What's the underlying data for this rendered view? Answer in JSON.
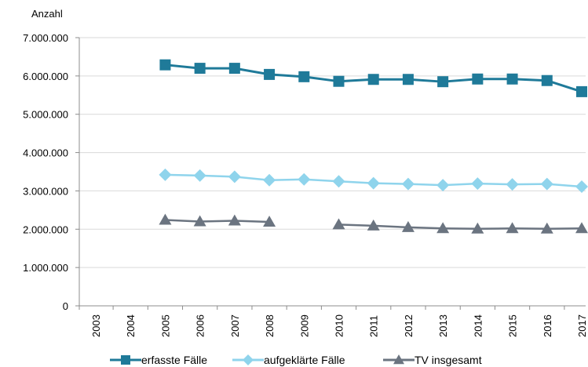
{
  "chart_data": {
    "type": "line",
    "title": "",
    "ylabel": "Anzahl",
    "xlabel": "",
    "categories": [
      "2003",
      "2004",
      "2005",
      "2006",
      "2007",
      "2008",
      "2009",
      "2010",
      "2011",
      "2012",
      "2013",
      "2014",
      "2015",
      "2016",
      "2017"
    ],
    "ylim": [
      0,
      7000000
    ],
    "ytick_values": [
      0,
      1000000,
      2000000,
      3000000,
      4000000,
      5000000,
      6000000,
      7000000
    ],
    "ytick_labels": [
      "0",
      "1.000.000",
      "2.000.000",
      "3.000.000",
      "4.000.000",
      "5.000.000",
      "6.000.000",
      "7.000.000"
    ],
    "grid": "horizontal",
    "legend_position": "bottom",
    "series": [
      {
        "name": "erfasste Fälle",
        "color": "#1f7a99",
        "marker": "square",
        "values": [
          null,
          null,
          6290000,
          6200000,
          6200000,
          6040000,
          5980000,
          5860000,
          5910000,
          5910000,
          5850000,
          5920000,
          5920000,
          5880000,
          5590000
        ]
      },
      {
        "name": "aufgeklärte Fälle",
        "color": "#8fd4ec",
        "marker": "diamond",
        "values": [
          null,
          null,
          3420000,
          3400000,
          3370000,
          3280000,
          3300000,
          3250000,
          3200000,
          3180000,
          3150000,
          3190000,
          3170000,
          3180000,
          3110000
        ]
      },
      {
        "name": "TV insgesamt",
        "color": "#6b7480",
        "marker": "triangle",
        "values": [
          null,
          null,
          2240000,
          2200000,
          2220000,
          2190000,
          null,
          2120000,
          2090000,
          2050000,
          2020000,
          2010000,
          2020000,
          2010000,
          2020000
        ]
      }
    ]
  }
}
